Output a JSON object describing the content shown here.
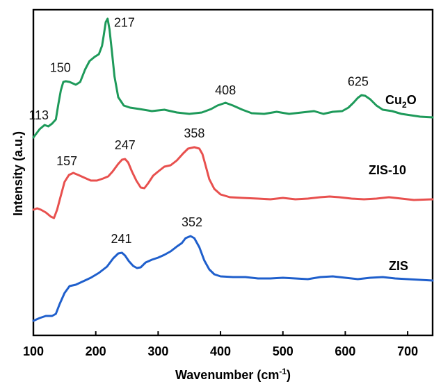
{
  "chart_data": {
    "type": "line",
    "xlabel": "Wavenumber (cm",
    "xlabel_sup": "-1",
    "xlabel_end": ")",
    "ylabel": "Intensity (a.u.)",
    "xlim": [
      100,
      740
    ],
    "xticks": [
      100,
      200,
      300,
      400,
      500,
      600,
      700
    ],
    "y_ticks_shown": false,
    "grid": false,
    "series": [
      {
        "name": "Cu2O",
        "label_main": "Cu",
        "label_sub": "2",
        "label_end": "O",
        "color": "#1e9a5a",
        "points": [
          [
            100,
            198
          ],
          [
            110,
            186
          ],
          [
            118,
            180
          ],
          [
            124,
            182
          ],
          [
            130,
            178
          ],
          [
            136,
            172
          ],
          [
            140,
            150
          ],
          [
            144,
            130
          ],
          [
            148,
            118
          ],
          [
            152,
            117
          ],
          [
            158,
            118
          ],
          [
            163,
            120
          ],
          [
            168,
            122
          ],
          [
            175,
            118
          ],
          [
            183,
            100
          ],
          [
            190,
            88
          ],
          [
            198,
            82
          ],
          [
            205,
            78
          ],
          [
            210,
            66
          ],
          [
            213,
            50
          ],
          [
            216,
            32
          ],
          [
            219,
            27
          ],
          [
            222,
            42
          ],
          [
            226,
            75
          ],
          [
            230,
            110
          ],
          [
            236,
            140
          ],
          [
            245,
            152
          ],
          [
            255,
            155
          ],
          [
            270,
            157
          ],
          [
            290,
            160
          ],
          [
            310,
            158
          ],
          [
            330,
            162
          ],
          [
            350,
            164
          ],
          [
            370,
            162
          ],
          [
            385,
            157
          ],
          [
            395,
            152
          ],
          [
            408,
            148
          ],
          [
            420,
            152
          ],
          [
            435,
            158
          ],
          [
            450,
            163
          ],
          [
            470,
            164
          ],
          [
            490,
            161
          ],
          [
            510,
            164
          ],
          [
            530,
            162
          ],
          [
            550,
            160
          ],
          [
            565,
            164
          ],
          [
            580,
            161
          ],
          [
            595,
            160
          ],
          [
            605,
            155
          ],
          [
            613,
            148
          ],
          [
            620,
            141
          ],
          [
            626,
            137
          ],
          [
            632,
            138
          ],
          [
            640,
            143
          ],
          [
            650,
            152
          ],
          [
            660,
            158
          ],
          [
            675,
            160
          ],
          [
            690,
            164
          ],
          [
            705,
            166
          ],
          [
            720,
            168
          ],
          [
            740,
            169
          ]
        ],
        "peak_labels": [
          113,
          150,
          217,
          408,
          625
        ]
      },
      {
        "name": "ZIS-10",
        "color": "#e8504e",
        "points": [
          [
            100,
            302
          ],
          [
            106,
            300
          ],
          [
            112,
            302
          ],
          [
            120,
            306
          ],
          [
            128,
            312
          ],
          [
            133,
            314
          ],
          [
            138,
            302
          ],
          [
            143,
            285
          ],
          [
            150,
            262
          ],
          [
            157,
            252
          ],
          [
            164,
            249
          ],
          [
            172,
            252
          ],
          [
            182,
            256
          ],
          [
            192,
            260
          ],
          [
            202,
            260
          ],
          [
            212,
            257
          ],
          [
            220,
            254
          ],
          [
            227,
            247
          ],
          [
            236,
            236
          ],
          [
            242,
            230
          ],
          [
            247,
            229
          ],
          [
            252,
            234
          ],
          [
            258,
            247
          ],
          [
            265,
            260
          ],
          [
            272,
            270
          ],
          [
            278,
            271
          ],
          [
            284,
            264
          ],
          [
            292,
            253
          ],
          [
            300,
            247
          ],
          [
            310,
            240
          ],
          [
            320,
            238
          ],
          [
            330,
            231
          ],
          [
            340,
            221
          ],
          [
            348,
            214
          ],
          [
            358,
            212
          ],
          [
            366,
            214
          ],
          [
            371,
            222
          ],
          [
            376,
            238
          ],
          [
            382,
            258
          ],
          [
            390,
            272
          ],
          [
            400,
            280
          ],
          [
            415,
            284
          ],
          [
            435,
            285
          ],
          [
            460,
            286
          ],
          [
            480,
            287
          ],
          [
            500,
            285
          ],
          [
            520,
            287
          ],
          [
            540,
            286
          ],
          [
            560,
            284
          ],
          [
            575,
            283
          ],
          [
            590,
            284
          ],
          [
            610,
            286
          ],
          [
            630,
            287
          ],
          [
            650,
            286
          ],
          [
            670,
            284
          ],
          [
            690,
            286
          ],
          [
            710,
            288
          ],
          [
            740,
            287
          ]
        ],
        "peak_labels": [
          157,
          247,
          358
        ]
      },
      {
        "name": "ZIS",
        "color": "#1f5fcc",
        "points": [
          [
            100,
            462
          ],
          [
            110,
            458
          ],
          [
            120,
            455
          ],
          [
            130,
            455
          ],
          [
            136,
            452
          ],
          [
            142,
            438
          ],
          [
            150,
            422
          ],
          [
            158,
            412
          ],
          [
            168,
            410
          ],
          [
            180,
            405
          ],
          [
            192,
            400
          ],
          [
            205,
            393
          ],
          [
            218,
            384
          ],
          [
            228,
            372
          ],
          [
            236,
            365
          ],
          [
            242,
            364
          ],
          [
            247,
            368
          ],
          [
            253,
            376
          ],
          [
            260,
            383
          ],
          [
            266,
            386
          ],
          [
            272,
            385
          ],
          [
            280,
            378
          ],
          [
            290,
            374
          ],
          [
            300,
            371
          ],
          [
            310,
            367
          ],
          [
            320,
            362
          ],
          [
            330,
            355
          ],
          [
            338,
            350
          ],
          [
            344,
            343
          ],
          [
            352,
            340
          ],
          [
            358,
            343
          ],
          [
            366,
            356
          ],
          [
            374,
            375
          ],
          [
            382,
            388
          ],
          [
            390,
            395
          ],
          [
            400,
            398
          ],
          [
            420,
            399
          ],
          [
            440,
            399
          ],
          [
            460,
            401
          ],
          [
            480,
            401
          ],
          [
            500,
            400
          ],
          [
            520,
            401
          ],
          [
            540,
            402
          ],
          [
            560,
            399
          ],
          [
            580,
            398
          ],
          [
            600,
            400
          ],
          [
            620,
            402
          ],
          [
            640,
            400
          ],
          [
            660,
            399
          ],
          [
            680,
            401
          ],
          [
            700,
            402
          ],
          [
            720,
            403
          ],
          [
            740,
            404
          ]
        ],
        "peak_labels": [
          241,
          352
        ]
      }
    ]
  }
}
